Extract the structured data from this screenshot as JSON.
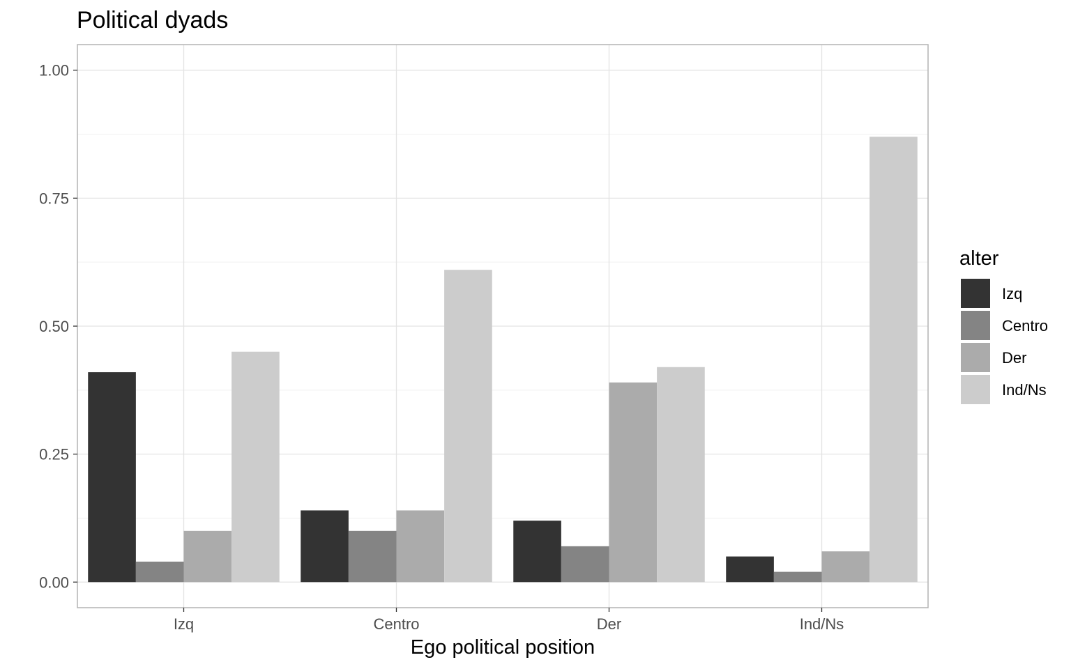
{
  "chart_data": {
    "type": "bar",
    "title": "Political dyads",
    "xlabel": "Ego political position",
    "ylabel": "",
    "categories": [
      "Izq",
      "Centro",
      "Der",
      "Ind/Ns"
    ],
    "series": [
      {
        "name": "Izq",
        "values": [
          0.41,
          0.14,
          0.12,
          0.05
        ],
        "color": "#333333"
      },
      {
        "name": "Centro",
        "values": [
          0.04,
          0.1,
          0.07,
          0.02
        ],
        "color": "#848484"
      },
      {
        "name": "Der",
        "values": [
          0.1,
          0.14,
          0.39,
          0.06
        ],
        "color": "#ababab"
      },
      {
        "name": "Ind/Ns",
        "values": [
          0.45,
          0.61,
          0.42,
          0.87
        ],
        "color": "#cccccc"
      }
    ],
    "ylim": [
      -0.05,
      1.05
    ],
    "yticks": [
      "0.00",
      "0.25",
      "0.50",
      "0.75",
      "1.00"
    ],
    "grid": true,
    "legend": {
      "title": "alter",
      "position": "right"
    }
  }
}
